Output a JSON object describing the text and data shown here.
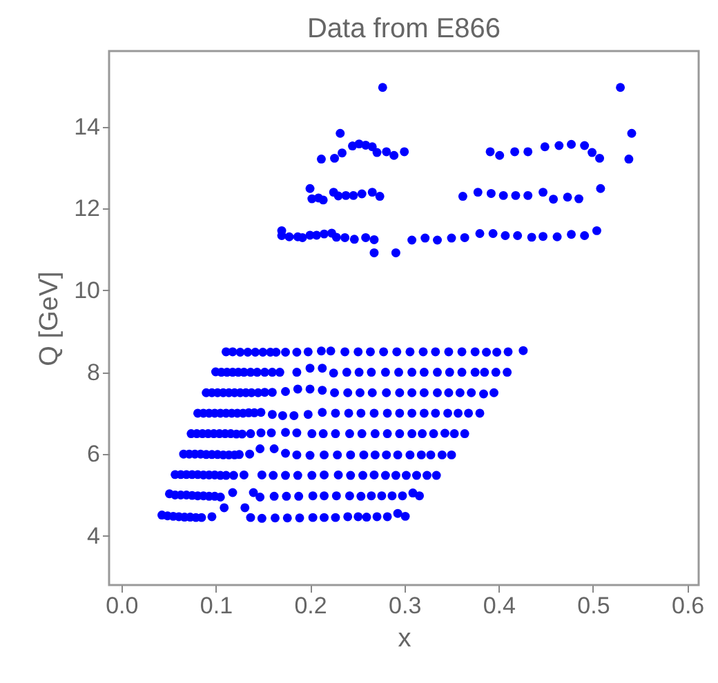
{
  "chart_data": {
    "type": "scatter",
    "title": "Data from E866",
    "xlabel": "x",
    "ylabel": "Q [GeV]",
    "marker": "circle",
    "grid": false,
    "legend": false,
    "xlim": [
      -0.013,
      0.612
    ],
    "ylim": [
      2.8,
      15.85
    ],
    "xticks": [
      {
        "value": 0,
        "label": "0.0"
      },
      0.1,
      0.2,
      0.3,
      0.4,
      0.5,
      0.6
    ],
    "yticks": [
      4,
      6,
      8,
      10,
      12,
      14
    ],
    "series": [
      {
        "color": "#0000ff",
        "x": [
          0.043,
          0.049,
          0.055,
          0.061,
          0.067,
          0.073,
          0.079,
          0.085,
          0.096,
          0.109,
          0.131,
          0.137,
          0.149,
          0.163,
          0.176,
          0.189,
          0.203,
          0.215,
          0.227,
          0.24,
          0.251,
          0.26,
          0.271,
          0.282,
          0.293,
          0.301,
          0.051,
          0.057,
          0.063,
          0.069,
          0.075,
          0.081,
          0.087,
          0.093,
          0.099,
          0.105,
          0.118,
          0.14,
          0.147,
          0.162,
          0.175,
          0.188,
          0.203,
          0.215,
          0.228,
          0.242,
          0.254,
          0.265,
          0.276,
          0.287,
          0.298,
          0.309,
          0.316,
          0.057,
          0.063,
          0.069,
          0.075,
          0.081,
          0.087,
          0.093,
          0.099,
          0.105,
          0.111,
          0.119,
          0.13,
          0.149,
          0.161,
          0.174,
          0.187,
          0.202,
          0.215,
          0.23,
          0.243,
          0.256,
          0.268,
          0.28,
          0.291,
          0.302,
          0.313,
          0.324,
          0.334,
          0.066,
          0.072,
          0.078,
          0.084,
          0.09,
          0.096,
          0.102,
          0.108,
          0.114,
          0.12,
          0.125,
          0.136,
          0.147,
          0.162,
          0.174,
          0.186,
          0.2,
          0.215,
          0.229,
          0.243,
          0.257,
          0.269,
          0.281,
          0.293,
          0.306,
          0.318,
          0.328,
          0.34,
          0.35,
          0.074,
          0.08,
          0.086,
          0.092,
          0.098,
          0.104,
          0.11,
          0.116,
          0.122,
          0.128,
          0.137,
          0.148,
          0.159,
          0.174,
          0.186,
          0.202,
          0.214,
          0.227,
          0.242,
          0.255,
          0.269,
          0.282,
          0.295,
          0.308,
          0.319,
          0.331,
          0.343,
          0.353,
          0.364,
          0.081,
          0.087,
          0.093,
          0.099,
          0.105,
          0.111,
          0.117,
          0.123,
          0.129,
          0.135,
          0.141,
          0.148,
          0.16,
          0.171,
          0.183,
          0.198,
          0.213,
          0.227,
          0.241,
          0.254,
          0.268,
          0.282,
          0.295,
          0.308,
          0.321,
          0.333,
          0.346,
          0.357,
          0.368,
          0.38,
          0.09,
          0.096,
          0.102,
          0.108,
          0.114,
          0.12,
          0.126,
          0.132,
          0.138,
          0.145,
          0.152,
          0.16,
          0.174,
          0.187,
          0.2,
          0.213,
          0.226,
          0.24,
          0.253,
          0.266,
          0.281,
          0.295,
          0.308,
          0.321,
          0.335,
          0.347,
          0.359,
          0.371,
          0.384,
          0.395,
          0.1,
          0.106,
          0.112,
          0.118,
          0.124,
          0.13,
          0.137,
          0.144,
          0.152,
          0.16,
          0.168,
          0.186,
          0.2,
          0.213,
          0.225,
          0.239,
          0.252,
          0.265,
          0.28,
          0.294,
          0.308,
          0.321,
          0.335,
          0.348,
          0.361,
          0.375,
          0.385,
          0.397,
          0.409,
          0.111,
          0.118,
          0.126,
          0.134,
          0.142,
          0.15,
          0.158,
          0.164,
          0.174,
          0.186,
          0.198,
          0.212,
          0.222,
          0.237,
          0.251,
          0.264,
          0.278,
          0.292,
          0.306,
          0.32,
          0.333,
          0.347,
          0.361,
          0.375,
          0.387,
          0.398,
          0.41,
          0.426,
          0.17,
          0.17,
          0.178,
          0.187,
          0.192,
          0.2,
          0.207,
          0.215,
          0.223,
          0.228,
          0.237,
          0.247,
          0.259,
          0.268,
          0.268,
          0.291,
          0.308,
          0.322,
          0.335,
          0.35,
          0.364,
          0.38,
          0.394,
          0.407,
          0.42,
          0.435,
          0.447,
          0.462,
          0.477,
          0.491,
          0.504,
          0.2,
          0.202,
          0.209,
          0.214,
          0.225,
          0.23,
          0.238,
          0.246,
          0.255,
          0.266,
          0.274,
          0.362,
          0.378,
          0.392,
          0.405,
          0.418,
          0.431,
          0.447,
          0.458,
          0.473,
          0.485,
          0.508,
          0.212,
          0.226,
          0.232,
          0.234,
          0.245,
          0.252,
          0.259,
          0.266,
          0.271,
          0.281,
          0.289,
          0.3,
          0.391,
          0.401,
          0.417,
          0.431,
          0.449,
          0.464,
          0.477,
          0.491,
          0.499,
          0.507,
          0.538,
          0.541,
          0.277,
          0.529
        ],
        "values": [
          4.51,
          4.49,
          4.48,
          4.47,
          4.46,
          4.46,
          4.45,
          4.45,
          4.47,
          4.69,
          4.69,
          4.45,
          4.43,
          4.44,
          4.44,
          4.44,
          4.45,
          4.45,
          4.45,
          4.47,
          4.47,
          4.46,
          4.47,
          4.47,
          4.55,
          4.48,
          5.03,
          5.0,
          5.0,
          5.0,
          4.99,
          4.98,
          4.98,
          4.97,
          4.97,
          4.95,
          5.06,
          5.06,
          4.95,
          4.97,
          4.97,
          4.97,
          4.98,
          4.98,
          4.98,
          4.98,
          4.97,
          4.98,
          4.98,
          4.98,
          4.98,
          5.05,
          4.98,
          5.5,
          5.5,
          5.5,
          5.5,
          5.5,
          5.49,
          5.49,
          5.49,
          5.48,
          5.48,
          5.48,
          5.49,
          5.49,
          5.48,
          5.48,
          5.48,
          5.48,
          5.49,
          5.49,
          5.48,
          5.48,
          5.49,
          5.48,
          5.48,
          5.48,
          5.48,
          5.48,
          5.48,
          6.0,
          6.0,
          6.0,
          6.0,
          5.99,
          5.99,
          5.99,
          5.98,
          5.98,
          5.98,
          5.99,
          6.0,
          6.13,
          6.13,
          6.02,
          5.98,
          5.97,
          5.98,
          5.98,
          5.98,
          5.98,
          5.98,
          5.98,
          5.98,
          5.98,
          5.98,
          5.98,
          5.98,
          5.98,
          6.5,
          6.5,
          6.5,
          6.5,
          6.5,
          6.5,
          6.5,
          6.5,
          6.49,
          6.49,
          6.5,
          6.52,
          6.52,
          6.53,
          6.52,
          6.5,
          6.5,
          6.5,
          6.5,
          6.5,
          6.5,
          6.5,
          6.5,
          6.5,
          6.5,
          6.5,
          6.51,
          6.5,
          6.5,
          7.0,
          7.0,
          7.0,
          7.0,
          7.0,
          7.0,
          7.0,
          7.0,
          7.0,
          7.01,
          7.01,
          7.02,
          6.97,
          6.94,
          6.94,
          6.97,
          7.02,
          7.0,
          7.0,
          7.0,
          7.0,
          7.0,
          7.0,
          7.0,
          7.0,
          7.0,
          7.0,
          7.0,
          7.0,
          7.0,
          7.5,
          7.5,
          7.5,
          7.5,
          7.5,
          7.5,
          7.5,
          7.5,
          7.5,
          7.5,
          7.51,
          7.51,
          7.53,
          7.59,
          7.59,
          7.56,
          7.5,
          7.5,
          7.5,
          7.5,
          7.5,
          7.5,
          7.5,
          7.5,
          7.5,
          7.5,
          7.5,
          7.5,
          7.47,
          7.5,
          8.01,
          8.0,
          8.0,
          8.0,
          8.0,
          8.0,
          8.0,
          8.0,
          8.0,
          8.0,
          8.0,
          8.0,
          8.1,
          8.1,
          7.98,
          8.0,
          8.0,
          8.0,
          8.0,
          8.0,
          8.0,
          8.0,
          8.0,
          8.0,
          8.0,
          8.0,
          8.0,
          8.0,
          8.0,
          8.5,
          8.5,
          8.49,
          8.49,
          8.49,
          8.49,
          8.49,
          8.49,
          8.49,
          8.49,
          8.5,
          8.52,
          8.52,
          8.5,
          8.5,
          8.5,
          8.5,
          8.5,
          8.5,
          8.5,
          8.5,
          8.5,
          8.5,
          8.5,
          8.49,
          8.49,
          8.5,
          8.53,
          11.46,
          11.34,
          11.31,
          11.31,
          11.29,
          11.35,
          11.35,
          11.38,
          11.4,
          11.3,
          11.29,
          11.25,
          11.29,
          11.24,
          10.92,
          10.92,
          11.23,
          11.28,
          11.23,
          11.28,
          11.29,
          11.39,
          11.39,
          11.34,
          11.34,
          11.3,
          11.32,
          11.31,
          11.37,
          11.34,
          11.46,
          12.49,
          12.24,
          12.26,
          12.21,
          12.4,
          12.31,
          12.32,
          12.32,
          12.36,
          12.4,
          12.3,
          12.3,
          12.4,
          12.37,
          12.32,
          12.32,
          12.32,
          12.4,
          12.23,
          12.28,
          12.24,
          12.49,
          13.21,
          13.23,
          13.84,
          13.36,
          13.53,
          13.58,
          13.55,
          13.51,
          13.37,
          13.39,
          13.3,
          13.39,
          13.39,
          13.3,
          13.39,
          13.39,
          13.51,
          13.54,
          13.57,
          13.54,
          13.37,
          13.23,
          13.21,
          13.84,
          14.96,
          14.96
        ]
      }
    ]
  }
}
